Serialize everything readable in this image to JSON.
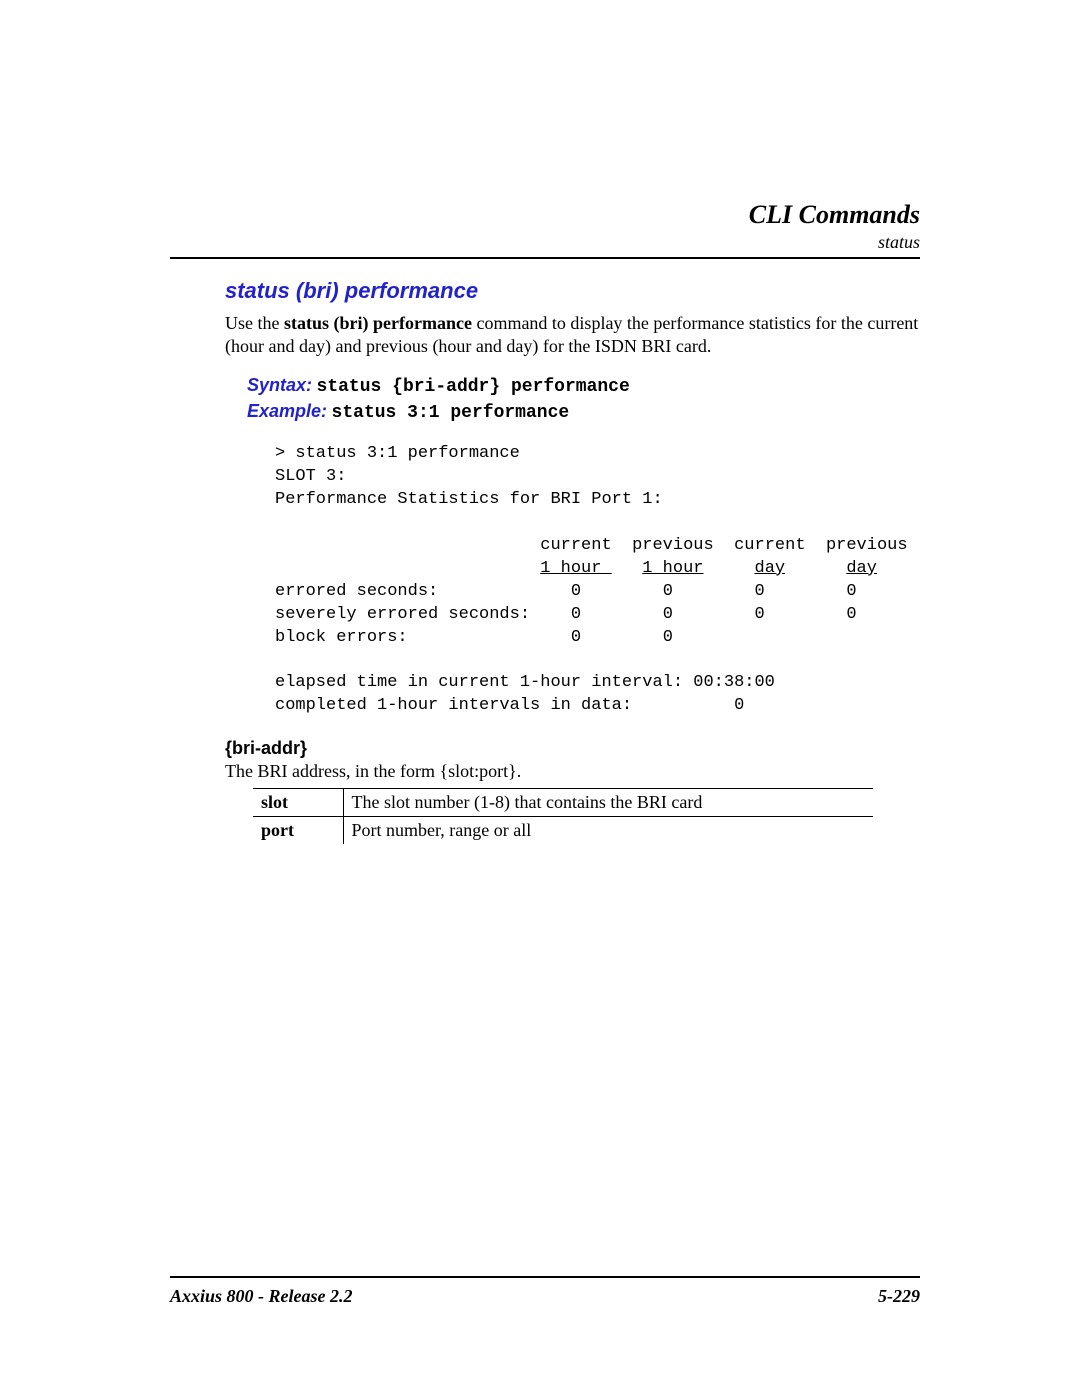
{
  "header": {
    "title": "CLI Commands",
    "subtitle": "status"
  },
  "section": {
    "title": "status (bri) performance",
    "intro_prefix": "Use the ",
    "intro_bold": "status (bri) performance",
    "intro_suffix": " command to display the performance statistics for the current (hour and day) and previous (hour and day) for the ISDN BRI card.",
    "syntax_label": "Syntax:",
    "syntax_value": "status {bri-addr} performance",
    "example_label": "Example:",
    "example_value": "status 3:1 performance"
  },
  "terminal": {
    "cmd": "> status 3:1 performance",
    "slot": "SLOT 3:",
    "stats_for": "Performance Statistics for BRI Port 1:",
    "hdr1_c1": "current",
    "hdr1_c2": "previous",
    "hdr1_c3": "current",
    "hdr1_c4": "previous",
    "hdr2_c1": "1 hour ",
    "hdr2_c2": "1 hour",
    "hdr2_c3": "day",
    "hdr2_c4": "day",
    "row1_label": "errored seconds:",
    "row1_v1": "0",
    "row1_v2": "0",
    "row1_v3": "0",
    "row1_v4": "0",
    "row2_label": "severely errored seconds:",
    "row2_v1": "0",
    "row2_v2": "0",
    "row2_v3": "0",
    "row2_v4": "0",
    "row3_label": "block errors:",
    "row3_v1": "0",
    "row3_v2": "0",
    "elapsed": "elapsed time in current 1-hour interval: 00:38:00",
    "completed_label": "completed 1-hour intervals in data:",
    "completed_val": "0"
  },
  "param": {
    "heading": "{bri-addr}",
    "desc": "The BRI address, in the form {slot:port}.",
    "table": {
      "rows": [
        {
          "name": "slot",
          "desc": "The slot number (1-8) that contains the BRI card"
        },
        {
          "name": "port",
          "desc": "Port number, range or all"
        }
      ]
    }
  },
  "footer": {
    "left": "Axxius 800 - Release 2.2",
    "right": "5-229"
  }
}
